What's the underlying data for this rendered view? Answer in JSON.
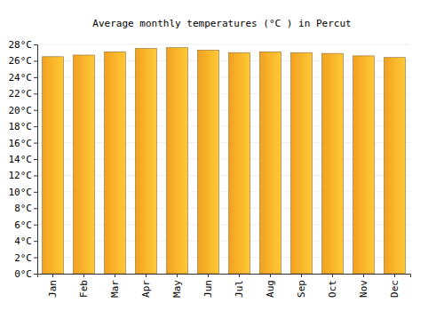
{
  "chart_data": {
    "type": "bar",
    "title": "Average monthly temperatures (°C ) in Percut",
    "categories": [
      "Jan",
      "Feb",
      "Mar",
      "Apr",
      "May",
      "Jun",
      "Jul",
      "Aug",
      "Sep",
      "Oct",
      "Nov",
      "Dec"
    ],
    "values": [
      26.5,
      26.7,
      27.1,
      27.5,
      27.6,
      27.3,
      27.0,
      27.1,
      27.0,
      26.9,
      26.6,
      26.4
    ],
    "color": "#ffaa22",
    "ylim": [
      0,
      28
    ],
    "yticks": [
      {
        "value": 0,
        "label": "0°C"
      },
      {
        "value": 2,
        "label": "2°C"
      },
      {
        "value": 4,
        "label": "4°C"
      },
      {
        "value": 6,
        "label": "6°C"
      },
      {
        "value": 8,
        "label": "8°C"
      },
      {
        "value": 10,
        "label": "10°C"
      },
      {
        "value": 12,
        "label": "12°C"
      },
      {
        "value": 14,
        "label": "14°C"
      },
      {
        "value": 16,
        "label": "16°C"
      },
      {
        "value": 18,
        "label": "18°C"
      },
      {
        "value": 20,
        "label": "20°C"
      },
      {
        "value": 22,
        "label": "22°C"
      },
      {
        "value": 24,
        "label": "24°C"
      },
      {
        "value": 26,
        "label": "26°C"
      },
      {
        "value": 28,
        "label": "28°C"
      }
    ],
    "grid": true
  }
}
